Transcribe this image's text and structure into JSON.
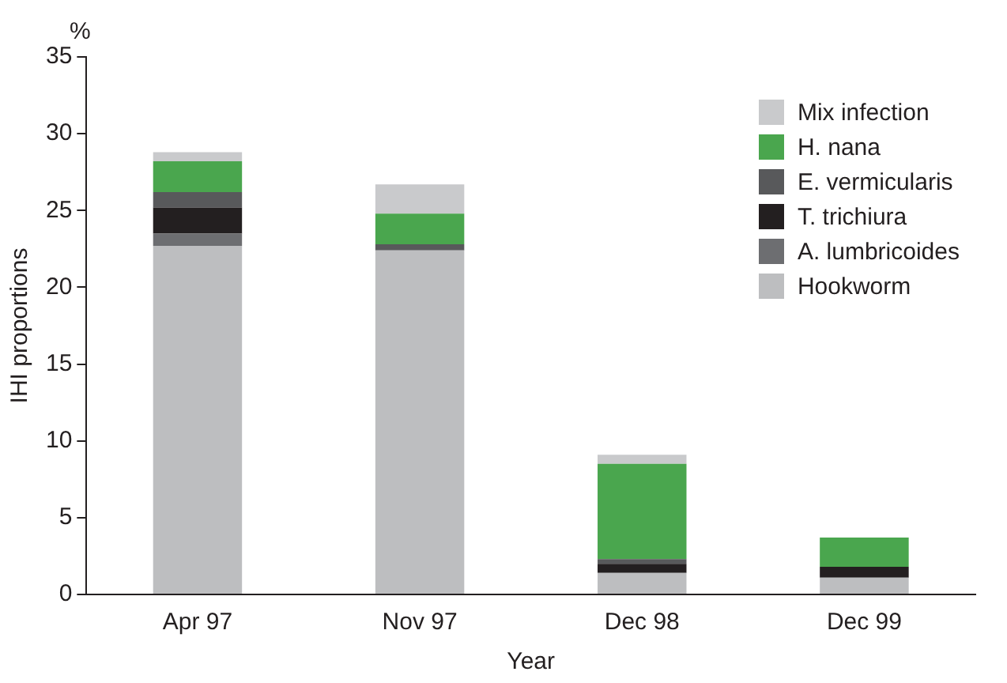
{
  "chart_data": {
    "type": "bar",
    "stacked": true,
    "xlabel": "Year",
    "ylabel": "IHI proportions",
    "annotations": [
      "%"
    ],
    "categories": [
      "Apr 97",
      "Nov 97",
      "Dec 98",
      "Dec 99"
    ],
    "series": [
      {
        "name": "Hookworm",
        "color": "#bdbec0",
        "values": [
          22.7,
          22.4,
          1.4,
          1.1
        ]
      },
      {
        "name": "A. lumbricoides",
        "color": "#6d6e71",
        "values": [
          0.8,
          0,
          0,
          0
        ]
      },
      {
        "name": "T. trichiura",
        "color": "#231f20",
        "values": [
          1.7,
          0,
          0.6,
          0.7
        ]
      },
      {
        "name": "E. vermicularis",
        "color": "#58595b",
        "values": [
          1.0,
          0.4,
          0.3,
          0
        ]
      },
      {
        "name": "H. nana",
        "color": "#4aa64e",
        "values": [
          2.0,
          2.0,
          6.2,
          1.9
        ]
      },
      {
        "name": "Mix infection",
        "color": "#c9cacc",
        "values": [
          0.6,
          1.9,
          0.6,
          0
        ]
      }
    ],
    "ylim": [
      0,
      35
    ],
    "yticks": [
      0,
      5,
      10,
      15,
      20,
      25,
      30,
      35
    ],
    "grid": false,
    "legend": "top right"
  }
}
